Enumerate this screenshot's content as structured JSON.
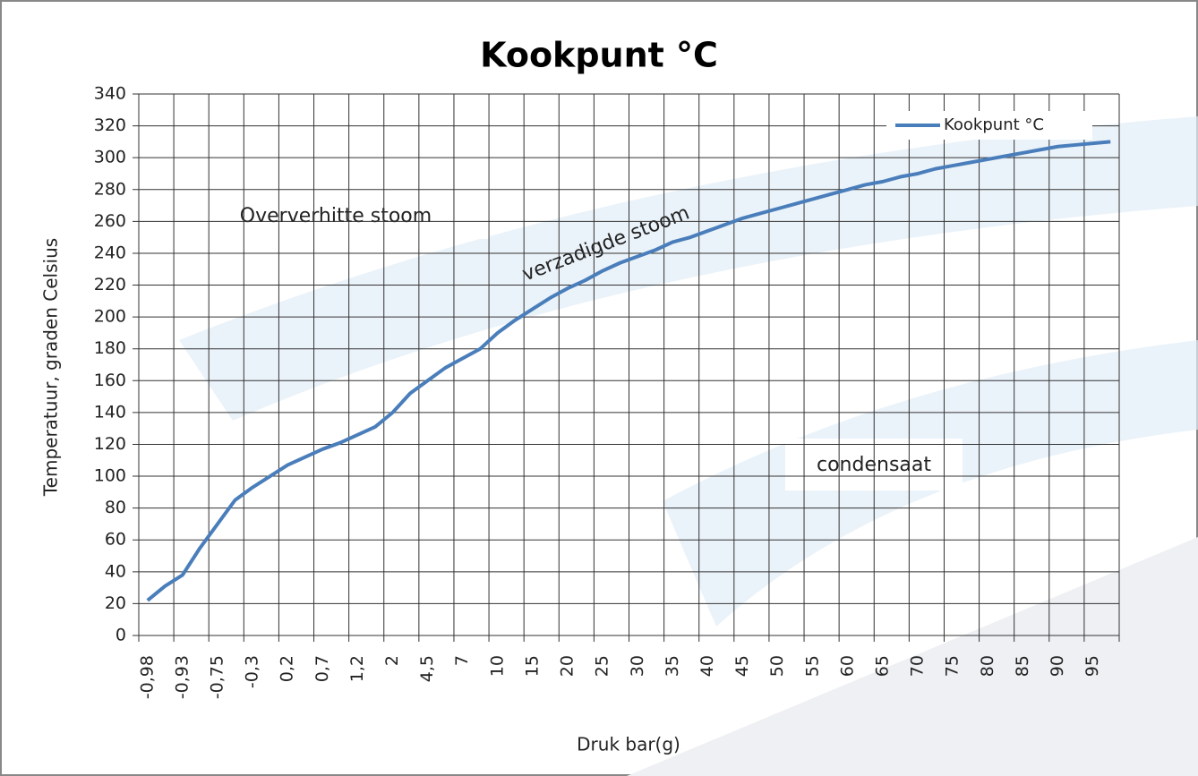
{
  "chart_data": {
    "type": "line",
    "title": "Kookpunt °C",
    "x_label": "Druk bar(g)",
    "y_label": "Temperatuur, graden Celsius",
    "categories": [
      "-0,98",
      null,
      "-0,93",
      null,
      "-0,75",
      null,
      "-0,3",
      null,
      "0,2",
      null,
      "0,7",
      null,
      "1,2",
      null,
      "2",
      null,
      "4,5",
      null,
      "7",
      null,
      "10",
      null,
      "15",
      null,
      "20",
      null,
      "25",
      null,
      "30",
      null,
      "35",
      null,
      "40",
      null,
      "45",
      null,
      "50",
      null,
      "55",
      null,
      "60",
      null,
      "65",
      null,
      "70",
      null,
      "75",
      null,
      "80",
      null,
      "85",
      null,
      "90",
      null,
      "95",
      null
    ],
    "series": [
      {
        "name": "Kookpunt °C",
        "color": "#4a7ebb",
        "values": [
          22,
          31,
          38,
          55,
          70,
          85,
          93,
          100,
          107,
          112,
          117,
          121,
          126,
          131,
          140,
          152,
          160,
          168,
          174,
          180,
          190,
          198,
          205,
          212,
          218,
          223,
          229,
          234,
          238,
          242,
          247,
          250,
          254,
          258,
          262,
          265,
          268,
          271,
          274,
          277,
          280,
          283,
          285,
          288,
          290,
          293,
          295,
          297,
          299,
          301,
          303,
          305,
          307,
          308,
          309,
          310
        ]
      }
    ],
    "ylim": [
      0,
      340
    ],
    "yticks": [
      0,
      20,
      40,
      60,
      80,
      100,
      120,
      140,
      160,
      180,
      200,
      220,
      240,
      260,
      280,
      300,
      320,
      340
    ],
    "grid": true,
    "legend": "top-right",
    "annotations": [
      "Oververhitte  stoom",
      "verzadigde stoom",
      "condensaat"
    ]
  }
}
